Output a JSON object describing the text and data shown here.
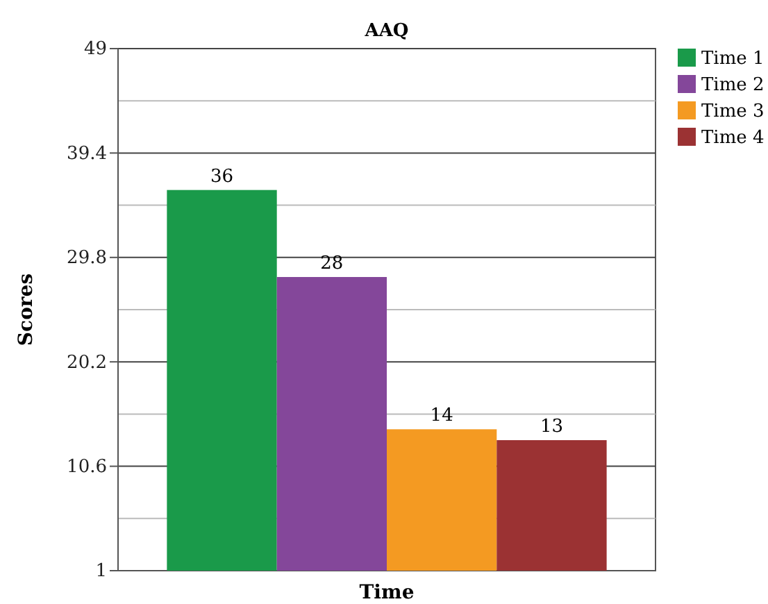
{
  "chart_data": {
    "type": "bar",
    "title": "AAQ",
    "xlabel": "Time",
    "ylabel": "Scores",
    "categories": [
      null
    ],
    "series": [
      {
        "name": "Time 1",
        "color": "#1a9a4a",
        "values": [
          36
        ]
      },
      {
        "name": "Time 2",
        "color": "#84479a",
        "values": [
          28
        ]
      },
      {
        "name": "Time 3",
        "color": "#f49a22",
        "values": [
          14
        ]
      },
      {
        "name": "Time 4",
        "color": "#9b3233",
        "values": [
          13
        ]
      }
    ],
    "ylim": [
      1,
      49
    ],
    "yticks": [
      1,
      {
        "value": 5.8,
        "label": null
      },
      10.6,
      {
        "value": 15.4,
        "label": null
      },
      20.2,
      {
        "value": 25,
        "label": null
      },
      29.8,
      {
        "value": 34.6,
        "label": null
      },
      39.4,
      {
        "value": 44.2,
        "label": null
      },
      49
    ],
    "grid": "y",
    "legend": "top right",
    "data_labels": true
  }
}
